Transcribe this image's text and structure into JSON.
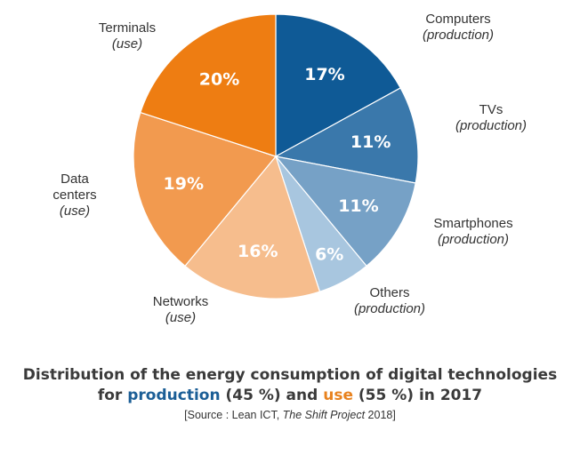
{
  "chart_data": {
    "type": "pie",
    "start_angle_deg": 0,
    "direction": "clockwise",
    "slices": [
      {
        "id": "computers",
        "category": "Computers",
        "group": "(production)",
        "value": 17,
        "label": "17%",
        "color": "#0f5a96"
      },
      {
        "id": "tvs",
        "category": "TVs",
        "group": "(production)",
        "value": 11,
        "label": "11%",
        "color": "#3a78ab"
      },
      {
        "id": "smartphones",
        "category": "Smartphones",
        "group": "(production)",
        "value": 11,
        "label": "11%",
        "color": "#76a1c6"
      },
      {
        "id": "others",
        "category": "Others",
        "group": "(production)",
        "value": 6,
        "label": "6%",
        "color": "#a8c6df"
      },
      {
        "id": "networks",
        "category": "Networks",
        "group": "(use)",
        "value": 16,
        "label": "16%",
        "color": "#f6bd8d"
      },
      {
        "id": "data-centers",
        "category": "Data centers",
        "group": "(use)",
        "value": 19,
        "label": "19%",
        "color": "#f29a4f"
      },
      {
        "id": "terminals",
        "category": "Terminals",
        "group": "(use)",
        "value": 20,
        "label": "20%",
        "color": "#ee7d12"
      }
    ],
    "title": {
      "line1": "Distribution of the energy consumption of digital technologies",
      "line2_pre": "for ",
      "production_word": "production",
      "production_share": " (45 %) and ",
      "use_word": "use",
      "use_share": " (55 %) in 2017"
    },
    "source": {
      "pre": "[Source : Lean ICT, ",
      "italic": "The Shift Project",
      "post": " 2018]"
    }
  },
  "labels": {
    "computers": {
      "cat": "Computers",
      "grp": "(production)"
    },
    "tvs": {
      "cat": "TVs",
      "grp": "(production)"
    },
    "smartphones": {
      "cat": "Smartphones",
      "grp": "(production)"
    },
    "others": {
      "cat": "Others",
      "grp": "(production)"
    },
    "networks": {
      "cat": "Networks",
      "grp": "(use)"
    },
    "data_centers": {
      "cat1": "Data",
      "cat2": "centers",
      "grp": "(use)"
    },
    "terminals": {
      "cat": "Terminals",
      "grp": "(use)"
    }
  }
}
